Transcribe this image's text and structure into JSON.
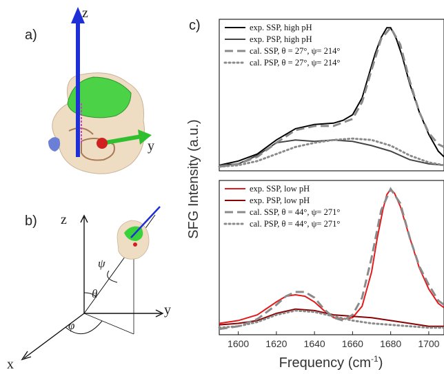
{
  "panel_labels": {
    "a": "a)",
    "b": "b)",
    "c": "c)"
  },
  "mol_axes": {
    "z": "z",
    "y": "y"
  },
  "frame_axes": {
    "z": "z",
    "y": "y",
    "x": "x",
    "theta": "θ",
    "psi": "ψ",
    "phi": "φ"
  },
  "colors": {
    "exp_ssp_high": "#000000",
    "exp_psp_high": "#444444",
    "cal": "#8a8a8a",
    "exp_ssp_low": "#e31a1c",
    "exp_psp_low": "#8b0000"
  },
  "chart_data": [
    {
      "type": "line",
      "ylabel": "SFG Intensity (a.u.)",
      "xlim": [
        1590,
        1708
      ],
      "ylim": [
        0,
        1.05
      ],
      "series": [
        {
          "name": "exp. SSP, high pH",
          "style": "solid",
          "color": "#000000",
          "x": [
            1590,
            1600,
            1610,
            1620,
            1630,
            1640,
            1650,
            1655,
            1660,
            1665,
            1670,
            1672,
            1675,
            1678,
            1680,
            1683,
            1686,
            1690,
            1695,
            1700,
            1705,
            1708
          ],
          "y": [
            0.02,
            0.05,
            0.1,
            0.2,
            0.28,
            0.31,
            0.32,
            0.34,
            0.38,
            0.5,
            0.73,
            0.82,
            0.93,
            1.0,
            1.0,
            0.92,
            0.8,
            0.6,
            0.4,
            0.24,
            0.12,
            0.08
          ]
        },
        {
          "name": "exp. PSP, high pH",
          "style": "solid",
          "color": "#444444",
          "x": [
            1590,
            1600,
            1610,
            1620,
            1630,
            1640,
            1650,
            1660,
            1670,
            1680,
            1690,
            1700,
            1708
          ],
          "y": [
            0.02,
            0.03,
            0.09,
            0.18,
            0.2,
            0.19,
            0.2,
            0.19,
            0.16,
            0.12,
            0.06,
            0.03,
            0.02
          ]
        },
        {
          "name": "cal. SSP, θ = 27°, ψ= 214°",
          "style": "dash",
          "color": "#8a8a8a",
          "x": [
            1590,
            1600,
            1610,
            1620,
            1630,
            1640,
            1650,
            1660,
            1665,
            1670,
            1675,
            1680,
            1685,
            1690,
            1695,
            1700,
            1705,
            1708
          ],
          "y": [
            0.01,
            0.03,
            0.08,
            0.18,
            0.27,
            0.3,
            0.3,
            0.35,
            0.47,
            0.7,
            0.92,
            1.0,
            0.88,
            0.62,
            0.4,
            0.25,
            0.17,
            0.15
          ]
        },
        {
          "name": "cal. PSP, θ = 27°, ψ= 214°",
          "style": "dot",
          "color": "#8a8a8a",
          "x": [
            1590,
            1600,
            1610,
            1620,
            1630,
            1640,
            1650,
            1660,
            1670,
            1680,
            1690,
            1700,
            1708
          ],
          "y": [
            0.01,
            0.02,
            0.05,
            0.1,
            0.15,
            0.18,
            0.2,
            0.21,
            0.2,
            0.16,
            0.09,
            0.04,
            0.02
          ]
        }
      ]
    },
    {
      "type": "line",
      "xlabel": "Frequency (cm-1)",
      "xlim": [
        1590,
        1708
      ],
      "xticks": [
        1600,
        1620,
        1640,
        1660,
        1680,
        1700
      ],
      "ylim": [
        0,
        1.05
      ],
      "series": [
        {
          "name": "exp. SSP, low pH",
          "style": "solid",
          "color": "#e31a1c",
          "x": [
            1590,
            1600,
            1610,
            1620,
            1625,
            1630,
            1635,
            1640,
            1645,
            1650,
            1655,
            1660,
            1665,
            1670,
            1673,
            1676,
            1678,
            1680,
            1682,
            1685,
            1690,
            1695,
            1700,
            1705,
            1708
          ],
          "y": [
            0.06,
            0.08,
            0.12,
            0.21,
            0.25,
            0.26,
            0.25,
            0.21,
            0.15,
            0.1,
            0.09,
            0.1,
            0.18,
            0.42,
            0.66,
            0.86,
            0.96,
            1.0,
            0.97,
            0.88,
            0.66,
            0.45,
            0.3,
            0.2,
            0.17
          ]
        },
        {
          "name": "exp. PSP, low pH",
          "style": "solid",
          "color": "#8b0000",
          "x": [
            1590,
            1600,
            1610,
            1620,
            1630,
            1640,
            1650,
            1660,
            1670,
            1680,
            1690,
            1700,
            1708
          ],
          "y": [
            0.05,
            0.06,
            0.08,
            0.13,
            0.16,
            0.15,
            0.12,
            0.11,
            0.1,
            0.08,
            0.06,
            0.04,
            0.04
          ]
        },
        {
          "name": "cal. SSP, θ = 44°, ψ= 271°",
          "style": "dash",
          "color": "#8a8a8a",
          "x": [
            1590,
            1600,
            1610,
            1620,
            1625,
            1630,
            1635,
            1640,
            1645,
            1650,
            1655,
            1660,
            1665,
            1670,
            1675,
            1680,
            1685,
            1690,
            1695,
            1700,
            1705,
            1708
          ],
          "y": [
            0.02,
            0.04,
            0.09,
            0.19,
            0.25,
            0.28,
            0.28,
            0.24,
            0.16,
            0.1,
            0.08,
            0.12,
            0.24,
            0.52,
            0.85,
            1.0,
            0.9,
            0.66,
            0.46,
            0.33,
            0.22,
            0.19
          ]
        },
        {
          "name": "cal. PSP, θ = 44°, ψ= 271°",
          "style": "dot",
          "color": "#8a8a8a",
          "x": [
            1590,
            1600,
            1610,
            1620,
            1630,
            1640,
            1650,
            1660,
            1670,
            1680,
            1690,
            1700,
            1708
          ],
          "y": [
            0.03,
            0.04,
            0.07,
            0.12,
            0.15,
            0.14,
            0.11,
            0.08,
            0.06,
            0.05,
            0.04,
            0.03,
            0.03
          ]
        }
      ]
    }
  ]
}
